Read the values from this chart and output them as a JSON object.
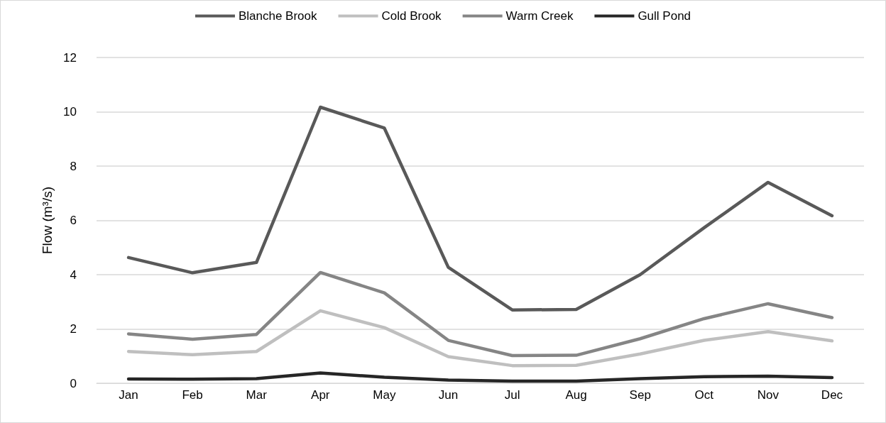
{
  "chart_data": {
    "type": "line",
    "ylabel": "Flow (m³/s)",
    "categories": [
      "Jan",
      "Feb",
      "Mar",
      "Apr",
      "May",
      "Jun",
      "Jul",
      "Aug",
      "Sep",
      "Oct",
      "Nov",
      "Dec"
    ],
    "series": [
      {
        "name": "Blanche Brook",
        "color": "#595959",
        "values": [
          4.63,
          4.07,
          4.45,
          10.17,
          9.4,
          4.27,
          2.7,
          2.72,
          4.0,
          5.73,
          7.4,
          6.17
        ]
      },
      {
        "name": "Cold Brook",
        "color": "#bfbfbf",
        "values": [
          1.17,
          1.05,
          1.17,
          2.67,
          2.05,
          0.98,
          0.65,
          0.66,
          1.08,
          1.58,
          1.9,
          1.56
        ]
      },
      {
        "name": "Warm Creek",
        "color": "#858585",
        "values": [
          1.82,
          1.62,
          1.8,
          4.08,
          3.33,
          1.58,
          1.02,
          1.03,
          1.64,
          2.38,
          2.93,
          2.42
        ]
      },
      {
        "name": "Gull Pond",
        "color": "#262626",
        "values": [
          0.16,
          0.15,
          0.17,
          0.38,
          0.22,
          0.12,
          0.08,
          0.08,
          0.17,
          0.24,
          0.26,
          0.21
        ]
      }
    ],
    "ylim": [
      0,
      12
    ],
    "yticks": [
      0,
      2,
      4,
      6,
      8,
      10,
      12
    ],
    "grid": "y",
    "legend": "top",
    "marker": "none",
    "line_style": "solid"
  }
}
